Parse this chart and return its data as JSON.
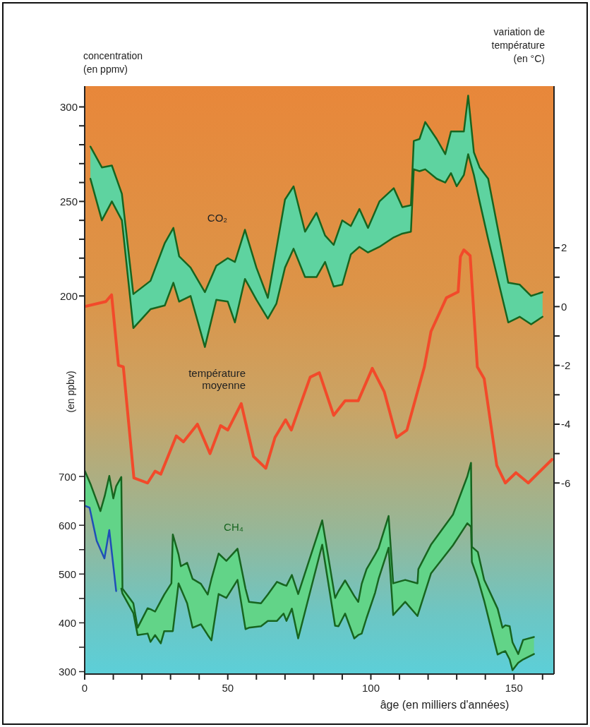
{
  "chart_data": {
    "type": "line",
    "xlabel": "âge (en milliers d'années)",
    "ylabel": "concentration (en ppmv)",
    "y2label": "variation de température (en °C)",
    "y3label": "(en ppbv)",
    "xlim": [
      0,
      164
    ],
    "xticks": [
      0,
      {
        "value": 10,
        "label": null
      },
      {
        "value": 20,
        "label": null
      },
      {
        "value": 30,
        "label": null
      },
      {
        "value": 40,
        "label": null
      },
      50,
      {
        "value": 60,
        "label": null
      },
      {
        "value": 70,
        "label": null
      },
      {
        "value": 80,
        "label": null
      },
      {
        "value": 90,
        "label": null
      },
      100,
      {
        "value": 110,
        "label": null
      },
      {
        "value": 120,
        "label": null
      },
      {
        "value": 130,
        "label": null
      },
      {
        "value": 140,
        "label": null
      },
      150,
      {
        "value": 160,
        "label": null
      }
    ],
    "ylim": [
      0,
      311
    ],
    "yticks": [
      200,
      {
        "value": 210,
        "label": null
      },
      {
        "value": 220,
        "label": null
      },
      {
        "value": 230,
        "label": null
      },
      {
        "value": 240,
        "label": null
      },
      250,
      {
        "value": 260,
        "label": null
      },
      {
        "value": 270,
        "label": null
      },
      {
        "value": 280,
        "label": null
      },
      {
        "value": 290,
        "label": null
      },
      300
    ],
    "y2lim": [
      -12.5,
      7.5
    ],
    "y2ticks": [
      2,
      {
        "value": 1,
        "label": null
      },
      0,
      {
        "value": -1,
        "label": null
      },
      -2,
      {
        "value": -3,
        "label": null
      },
      -4,
      {
        "value": -5,
        "label": null
      },
      -6
    ],
    "y3lim": [
      295,
      1500
    ],
    "y3ticks": [
      300,
      {
        "value": 350,
        "label": null
      },
      400,
      {
        "value": 450,
        "label": null
      },
      500,
      {
        "value": 550,
        "label": null
      },
      600,
      {
        "value": 650,
        "label": null
      },
      700
    ],
    "grid": false,
    "legend": false,
    "marker": "none",
    "series": [
      {
        "name": "CO₂",
        "type": "line",
        "color": "#17651f",
        "upper": [
          279,
          268,
          269,
          254,
          201,
          208,
          228,
          236,
          221,
          215,
          202,
          216,
          220,
          218,
          235,
          215,
          199,
          225,
          251,
          258,
          234,
          244,
          232,
          227,
          240,
          237,
          246,
          236,
          250,
          257,
          247,
          248,
          282,
          283,
          292,
          283,
          275,
          287,
          287,
          287,
          306,
          276,
          268,
          262,
          207,
          206,
          200,
          202
        ],
        "x": [
          2,
          6,
          9.5,
          13,
          17,
          23,
          28,
          31,
          33,
          37,
          42,
          46,
          50,
          52.5,
          56,
          60,
          64,
          67,
          70,
          73,
          77,
          81,
          84,
          87,
          90,
          93,
          96,
          99,
          103,
          108,
          111,
          114,
          115,
          117,
          119,
          123,
          126,
          128,
          130,
          132.5,
          134,
          136,
          138,
          141,
          148,
          152,
          156,
          160
        ],
        "values": [
          279,
          268,
          269,
          254,
          201,
          208,
          228,
          236,
          221,
          215,
          202,
          216,
          220,
          218,
          235,
          215,
          199,
          225,
          251,
          258,
          234,
          244,
          232,
          227,
          240,
          237,
          246,
          236,
          250,
          257,
          247,
          248,
          282,
          283,
          292,
          283,
          275,
          287,
          287,
          287,
          306,
          276,
          268,
          262,
          207,
          206,
          200,
          202
        ],
        "lower": [
          262,
          240,
          250,
          240,
          183,
          193,
          195,
          207,
          197,
          200,
          173,
          198,
          197,
          186,
          209,
          198,
          188,
          196,
          215,
          225,
          210,
          210,
          218,
          205,
          206,
          222,
          226,
          223,
          226,
          231,
          233,
          234,
          267,
          266,
          267,
          262,
          260,
          265,
          258,
          264,
          275,
          264,
          250,
          230,
          186,
          189,
          185,
          189
        ]
      },
      {
        "name": "température moyenne",
        "type": "line",
        "axis": "y2",
        "color": "#f24a2a",
        "x": [
          0,
          7.4,
          9.4,
          11.8,
          13.5,
          17.2,
          22,
          24.6,
          26.6,
          32,
          34.5,
          39.4,
          43.8,
          47.5,
          50,
          54.7,
          59,
          63.3,
          66.5,
          70.2,
          72.2,
          78.8,
          82,
          87,
          91,
          95.6,
          100.5,
          104.7,
          109,
          112.6,
          118.7,
          121,
          126.4,
          130.5,
          131.3,
          132.5,
          134.7,
          137.2,
          139.6,
          144,
          147,
          150.7,
          155,
          163.3
        ],
        "values": [
          0,
          0.17,
          0.4,
          -2,
          -2.05,
          -5.83,
          -6,
          -5.6,
          -5.7,
          -4.4,
          -4.6,
          -4,
          -5,
          -4.05,
          -4.2,
          -3.3,
          -5.1,
          -5.5,
          -4.45,
          -3.85,
          -4.2,
          -2.4,
          -2.25,
          -3.7,
          -3.2,
          -3.2,
          -2.1,
          -2.9,
          -4.45,
          -4.2,
          -2.05,
          -0.85,
          0.3,
          0.5,
          1.7,
          1.93,
          1.73,
          -2.05,
          -2.45,
          -5.4,
          -6,
          -5.65,
          -6,
          -5.2
        ]
      },
      {
        "name": "CH₄",
        "type": "line",
        "axis": "y3",
        "color": "#17651f",
        "upper": [
          712,
          685,
          650,
          629,
          660,
          701,
          655,
          680,
          699,
          470,
          440,
          390,
          430,
          428,
          423,
          445,
          458,
          481,
          581,
          540,
          516,
          523,
          490,
          480,
          458,
          490,
          542,
          527,
          552,
          470,
          443,
          440,
          458,
          484,
          478,
          476,
          498,
          459,
          610,
          451,
          465,
          487,
          455,
          443,
          480,
          510,
          540,
          553,
          619,
          481,
          488,
          481,
          510,
          560,
          622,
          700,
          728,
          556,
          545,
          488,
          429,
          390,
          395,
          393,
          360,
          336,
          365,
          371
        ],
        "x": [
          0,
          2,
          4.2,
          5.5,
          7,
          8.6,
          10,
          11,
          12.8,
          13.2,
          17,
          18.5,
          22,
          23,
          24.6,
          26.6,
          27.8,
          30.3,
          30.8,
          32.8,
          33.6,
          35.8,
          37.7,
          40.6,
          43,
          44.3,
          46.8,
          49.5,
          53.4,
          56.2,
          57.4,
          61.6,
          64,
          67.2,
          69.5,
          70.5,
          72.4,
          74.6,
          83,
          87.5,
          88.7,
          91,
          94.2,
          95.6,
          96.8,
          98.5,
          101.5,
          102.7,
          106.2,
          107.8,
          112,
          116.3,
          116.6,
          121,
          128.7,
          133.7,
          135,
          135.3,
          137.4,
          139.6,
          144.3,
          146,
          147,
          148.5,
          149.5,
          151.5,
          153.2,
          157
        ],
        "values": [
          712,
          685,
          650,
          629,
          660,
          701,
          655,
          680,
          699,
          470,
          440,
          390,
          430,
          428,
          423,
          445,
          458,
          481,
          581,
          540,
          516,
          523,
          490,
          480,
          458,
          490,
          542,
          527,
          552,
          470,
          443,
          440,
          458,
          484,
          478,
          476,
          498,
          459,
          610,
          451,
          465,
          487,
          455,
          443,
          480,
          510,
          540,
          553,
          619,
          481,
          488,
          481,
          510,
          560,
          622,
          700,
          728,
          556,
          545,
          488,
          429,
          390,
          395,
          393,
          360,
          336,
          365,
          371
        ],
        "lower": [
          640,
          634,
          568,
          560,
          532,
          590,
          520,
          465,
          470,
          460,
          420,
          375,
          378,
          361,
          375,
          358,
          383,
          383,
          383,
          481,
          470,
          440,
          390,
          397,
          375,
          364,
          459,
          451,
          488,
          387,
          390,
          393,
          404,
          404,
          419,
          404,
          429,
          368,
          560,
          394,
          393,
          419,
          368,
          375,
          378,
          410,
          462,
          490,
          554,
          416,
          443,
          414,
          420,
          501,
          559,
          604,
          597,
          525,
          490,
          445,
          335,
          340,
          342,
          325,
          303,
          318,
          325,
          336
        ]
      },
      {
        "type": "line",
        "color": "#17651f",
        "x": [
          2,
          6,
          9.5,
          13,
          17,
          23,
          28,
          31,
          33,
          37,
          42,
          46,
          50,
          52.5,
          56,
          60,
          64,
          67,
          70,
          73,
          77,
          81,
          84,
          87,
          90,
          93,
          96,
          99,
          103,
          108,
          111,
          114,
          115,
          117,
          119,
          123,
          126,
          128,
          130,
          132.5,
          134,
          136,
          138,
          141,
          148,
          152,
          156,
          160
        ],
        "values": [
          262,
          240,
          250,
          240,
          183,
          193,
          195,
          207,
          197,
          200,
          173,
          198,
          197,
          186,
          209,
          198,
          188,
          196,
          215,
          225,
          210,
          210,
          218,
          205,
          206,
          222,
          226,
          223,
          226,
          231,
          233,
          234,
          267,
          266,
          267,
          262,
          260,
          265,
          258,
          264,
          275,
          264,
          250,
          230,
          186,
          189,
          185,
          189
        ]
      },
      {
        "type": "line",
        "axis": "y3",
        "color": "#17651f",
        "x": [
          12.8,
          13.2,
          17,
          18.5,
          22,
          23,
          24.6,
          26.6,
          27.8,
          30.3,
          30.8,
          32.8,
          33.6,
          35.8,
          37.7,
          40.6,
          43,
          44.3,
          46.8,
          49.5,
          53.4,
          56.2,
          57.4,
          61.6,
          64,
          67.2,
          69.5,
          70.5,
          72.4,
          74.6,
          83,
          87.5,
          88.7,
          91,
          94.2,
          95.6,
          96.8,
          98.5,
          101.5,
          102.7,
          106.2,
          107.8,
          112,
          116.3,
          116.6,
          121,
          128.7,
          133.7,
          135,
          135.3,
          137.4,
          139.6,
          144.3,
          146,
          147,
          148.5,
          149.5,
          151.5,
          153.2,
          157
        ],
        "values": [
          470,
          460,
          420,
          375,
          378,
          361,
          375,
          358,
          383,
          383,
          383,
          481,
          470,
          440,
          390,
          397,
          375,
          364,
          459,
          451,
          488,
          387,
          390,
          393,
          404,
          404,
          419,
          404,
          429,
          368,
          560,
          394,
          393,
          419,
          368,
          375,
          378,
          410,
          462,
          490,
          554,
          416,
          443,
          414,
          420,
          501,
          559,
          604,
          597,
          525,
          490,
          445,
          335,
          340,
          342,
          325,
          303,
          318,
          325,
          336
        ]
      },
      {
        "type": "line",
        "axis": "y3",
        "color": "#1f4fb8",
        "x": [
          0,
          1.7,
          4.2,
          6.9,
          8.6,
          11
        ],
        "values": [
          640,
          636,
          568,
          532,
          590,
          465
        ]
      }
    ]
  }
}
